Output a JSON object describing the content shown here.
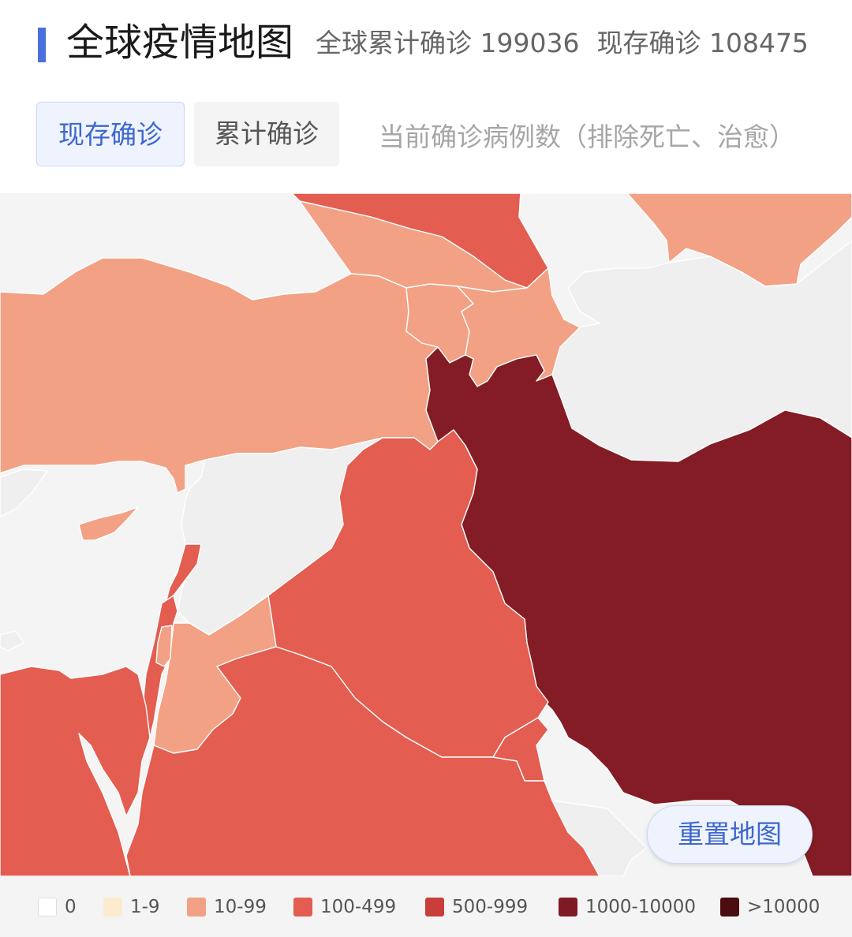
{
  "header": {
    "title": "全球疫情地图",
    "total_label": "全球累计确诊 199036",
    "current_label": "现存确诊 108475"
  },
  "tabs": [
    {
      "label": "现存确诊",
      "active": true
    },
    {
      "label": "累计确诊",
      "active": false
    }
  ],
  "tab_description": "当前确诊病例数（排除死亡、治愈）",
  "reset_button": "重置地图",
  "legend": [
    {
      "label": "0",
      "color": "#ffffff"
    },
    {
      "label": "1-9",
      "color": "#fdebcf"
    },
    {
      "label": "10-99",
      "color": "#f2a184"
    },
    {
      "label": "100-499",
      "color": "#e35d50"
    },
    {
      "label": "500-999",
      "color": "#c93e3a"
    },
    {
      "label": "1000-10000",
      "color": "#7f1a24"
    },
    {
      "label": ">10000",
      "color": "#4a0d10"
    }
  ],
  "colors": {
    "accent": "#4a6fde",
    "no_data": "#efefef",
    "water": "#f4f4f4"
  }
}
